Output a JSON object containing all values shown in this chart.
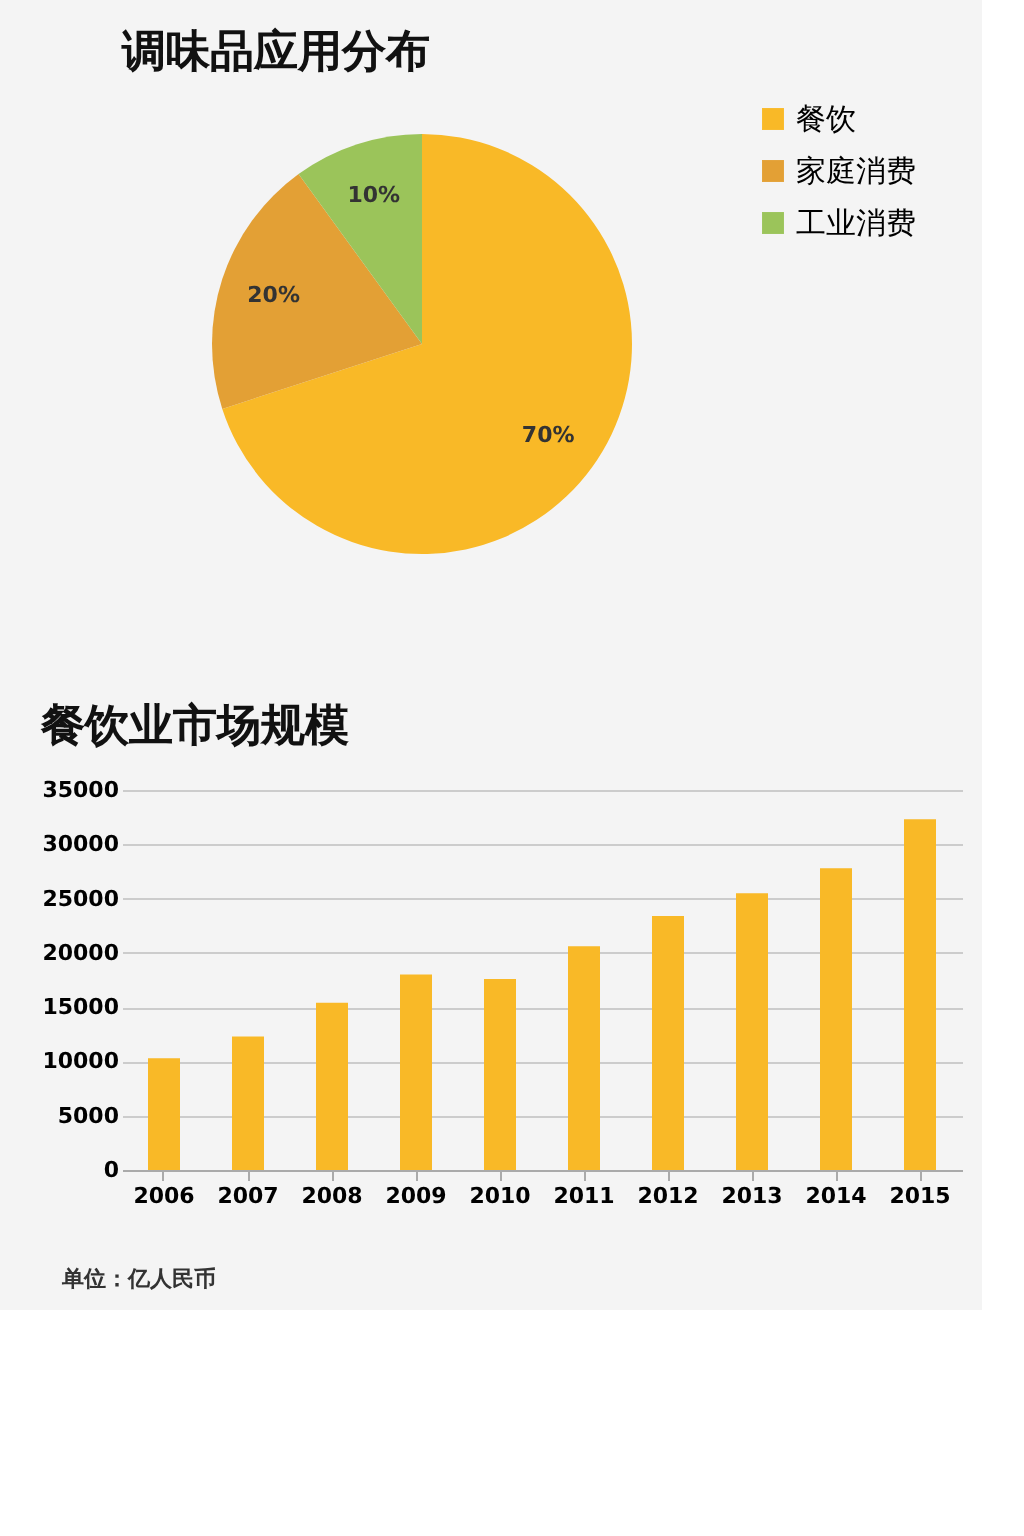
{
  "chart_data": [
    {
      "type": "pie",
      "title": "调味品应用分布",
      "categories": [
        "餐饮",
        "家庭消费",
        "工业消费"
      ],
      "values": [
        70,
        20,
        10
      ],
      "colors": [
        "#f9b927",
        "#e3a035",
        "#9bc45a"
      ],
      "value_labels": [
        "70%",
        "20%",
        "10%"
      ],
      "legend": "right"
    },
    {
      "type": "bar",
      "title": "餐饮业市场规模",
      "categories": [
        "2006",
        "2007",
        "2008",
        "2009",
        "2010",
        "2011",
        "2012",
        "2013",
        "2014",
        "2015"
      ],
      "series": [
        {
          "color": "#f9b927",
          "values": [
            10300,
            12300,
            15400,
            18000,
            17600,
            20600,
            23400,
            25500,
            27800,
            32300
          ]
        }
      ],
      "ylim": [
        0,
        35000
      ],
      "yticks": [
        0,
        5000,
        10000,
        15000,
        20000,
        25000,
        30000,
        35000
      ],
      "grid": "y",
      "legend": false,
      "annotations": [
        "单位：亿人民币"
      ]
    }
  ]
}
